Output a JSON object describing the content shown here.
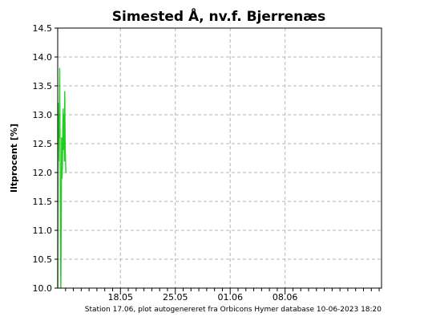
{
  "chart_data": {
    "type": "line",
    "title": "Simested Å, nv.f. Bjerrenæs",
    "ylabel": "Iltprocent [%]",
    "xlabel": "",
    "ylim": [
      10.0,
      14.5
    ],
    "y_ticks": [
      "10.0",
      "10.5",
      "11.0",
      "11.5",
      "12.0",
      "12.5",
      "13.0",
      "13.5",
      "14.0",
      "14.5"
    ],
    "x_domain_days": [
      0,
      41.3
    ],
    "x_ticks": [
      {
        "label": "18.05",
        "day": 8
      },
      {
        "label": "25.05",
        "day": 15
      },
      {
        "label": "01.06",
        "day": 22
      },
      {
        "label": "08.06",
        "day": 29
      }
    ],
    "x_minor_ticks_days": [
      1,
      2,
      3,
      4,
      5,
      6,
      7,
      9,
      10,
      11,
      12,
      13,
      14,
      16,
      17,
      18,
      19,
      20,
      21,
      23,
      24,
      25,
      26,
      27,
      28,
      30,
      31,
      32,
      33,
      34,
      35,
      36,
      37,
      38,
      39,
      40,
      41
    ],
    "grid": true,
    "series": [
      {
        "name": "",
        "color": "#22cc22",
        "x_days": [
          0.0,
          0.05,
          0.1,
          0.15,
          0.2,
          0.25,
          0.3,
          0.35,
          0.4,
          0.45,
          0.5,
          0.55,
          0.6,
          0.65,
          0.7,
          0.75,
          0.8,
          0.85,
          0.9,
          0.95,
          1.0,
          1.05,
          1.1
        ],
        "values": [
          10.0,
          13.2,
          12.2,
          13.0,
          12.6,
          13.8,
          12.4,
          11.2,
          10.0,
          11.2,
          12.6,
          11.9,
          12.1,
          12.8,
          13.1,
          12.4,
          13.0,
          12.2,
          13.4,
          12.5,
          12.2,
          12.0,
          12.0
        ]
      }
    ]
  },
  "footer": "Station 17.06, plot autogenereret fra Orbicons Hymer database 10-06-2023 18:20"
}
